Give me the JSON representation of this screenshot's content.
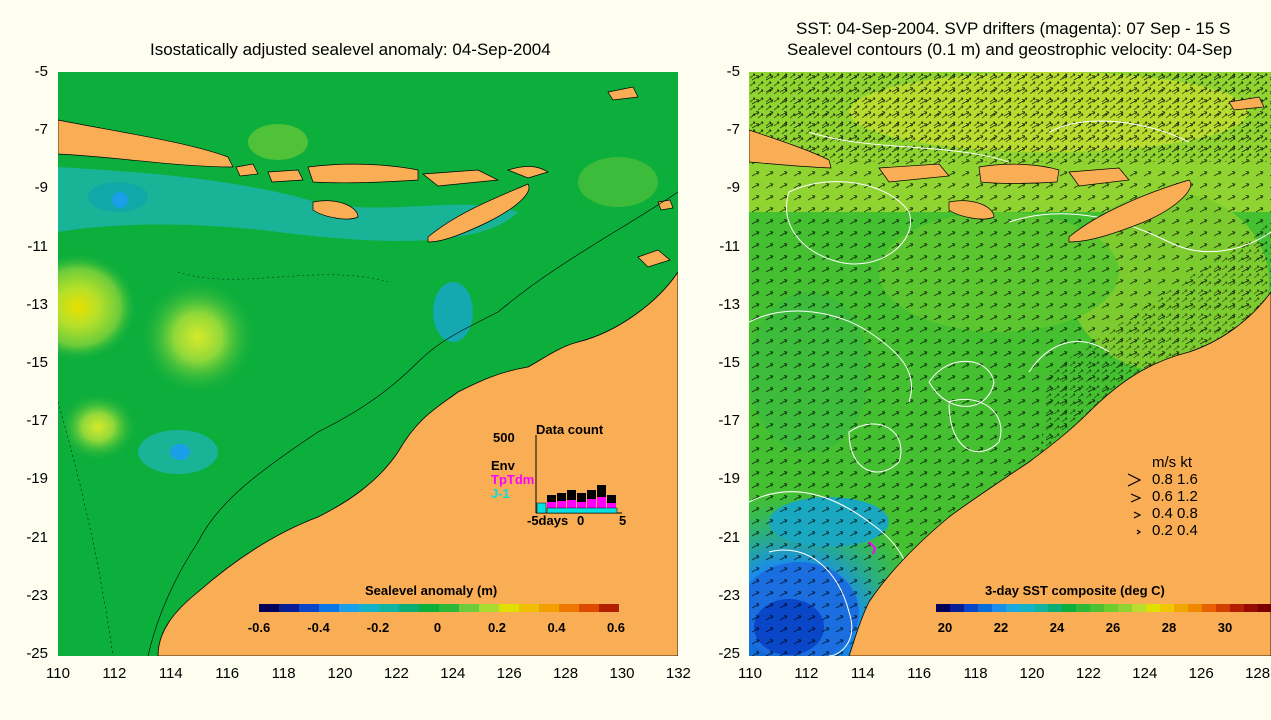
{
  "left_panel": {
    "title": "Isostatically adjusted sealevel anomaly: 04-Sep-2004",
    "y_ticks": [
      "-5",
      "-7",
      "-9",
      "-11",
      "-13",
      "-15",
      "-17",
      "-19",
      "-21",
      "-23",
      "-25"
    ],
    "x_ticks": [
      "110",
      "112",
      "114",
      "116",
      "118",
      "120",
      "122",
      "124",
      "126",
      "128",
      "130",
      "132"
    ],
    "colorbar": {
      "title": "Sealevel anomaly (m)",
      "labels": [
        "-0.6",
        "-0.4",
        "-0.2",
        "0",
        "0.2",
        "0.4",
        "0.6"
      ]
    },
    "inset": {
      "title": "Data count",
      "y_label": "500",
      "series": [
        "Env",
        "TpTdm",
        "J-1"
      ],
      "series_colors": [
        "#000000",
        "#ff00ff",
        "#00e0e0"
      ],
      "x_labels": [
        "-5days",
        "0",
        "5"
      ]
    }
  },
  "right_panel": {
    "title_line1": "SST: 04-Sep-2004. SVP drifters (magenta): 07 Sep - 15 S",
    "title_line2": "Sealevel contours (0.1 m) and geostrophic velocity: 04-Sep",
    "y_ticks": [
      "-5",
      "-7",
      "-9",
      "-11",
      "-13",
      "-15",
      "-17",
      "-19",
      "-21",
      "-23",
      "-25"
    ],
    "x_ticks": [
      "110",
      "112",
      "114",
      "116",
      "118",
      "120",
      "122",
      "124",
      "126",
      "128"
    ],
    "colorbar": {
      "title": "3-day SST composite (deg C)",
      "labels": [
        "20",
        "22",
        "24",
        "26",
        "28",
        "30"
      ]
    },
    "velocity_legend": {
      "header": "m/s  kt",
      "rows": [
        "0.8  1.6",
        "0.6  1.2",
        "0.4  0.8",
        "0.2  0.4"
      ]
    }
  },
  "colors": {
    "land": "#f9ae55",
    "ocean_green": "#0cae3c",
    "background": "#fdfdf0"
  }
}
